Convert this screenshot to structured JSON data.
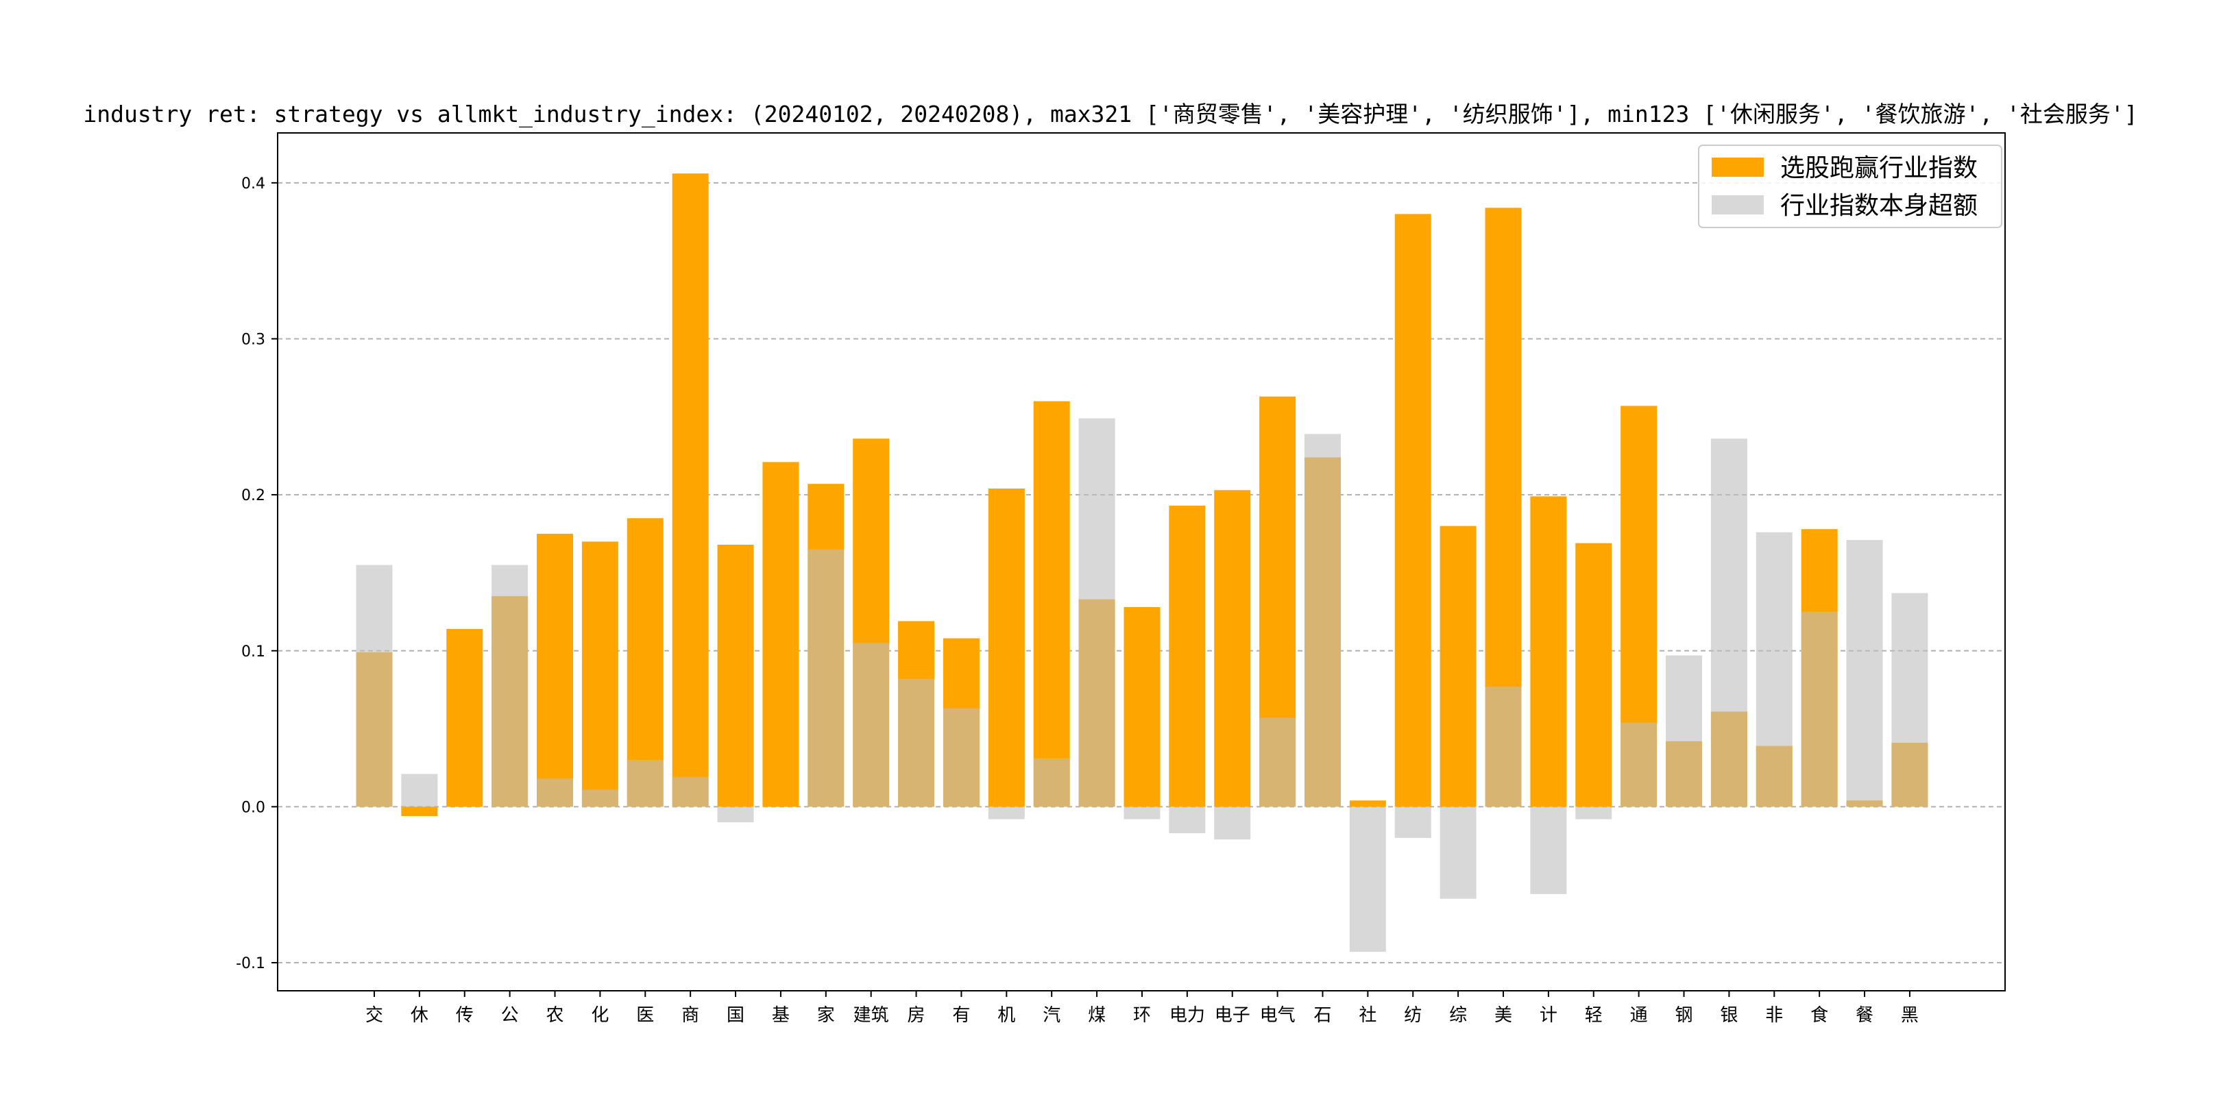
{
  "chart_data": {
    "type": "bar",
    "title": "industry ret: strategy vs allmkt_industry_index: (20240102, 20240208), max321 ['商贸零售', '美容护理', '纺织服饰'], min123 ['休闲服务', '餐饮旅游', '社会服务']",
    "xlabel": "",
    "ylabel": "",
    "ylim": [
      -0.118,
      0.432
    ],
    "yticks": [
      -0.1,
      0.0,
      0.1,
      0.2,
      0.3,
      0.4
    ],
    "ytick_labels": [
      "-0.1",
      "0.0",
      "0.1",
      "0.2",
      "0.3",
      "0.4"
    ],
    "grid": "y-dashed",
    "legend_position": "top-right",
    "categories": [
      "交",
      "休",
      "传",
      "公",
      "农",
      "化",
      "医",
      "商",
      "国",
      "基",
      "家",
      "建筑",
      "房",
      "有",
      "机",
      "汽",
      "煤",
      "环",
      "电力",
      "电子",
      "电气",
      "石",
      "社",
      "纺",
      "综",
      "美",
      "计",
      "轻",
      "通",
      "钢",
      "银",
      "非",
      "食",
      "餐",
      "黑"
    ],
    "series": [
      {
        "name": "选股跑赢行业指数",
        "color": "#FFA500",
        "values": [
          0.099,
          -0.006,
          0.114,
          0.135,
          0.175,
          0.17,
          0.185,
          0.406,
          0.168,
          0.221,
          0.207,
          0.236,
          0.119,
          0.108,
          0.204,
          0.26,
          0.133,
          0.128,
          0.193,
          0.203,
          0.263,
          0.224,
          0.004,
          0.38,
          0.18,
          0.384,
          0.199,
          0.169,
          0.257,
          0.042,
          0.061,
          0.039,
          0.178,
          0.004,
          0.041
        ]
      },
      {
        "name": "行业指数本身超额",
        "color": "#BEBEBE",
        "values": [
          0.155,
          0.021,
          0.0,
          0.155,
          0.018,
          0.011,
          0.03,
          0.019,
          -0.01,
          0.0,
          0.165,
          0.105,
          0.082,
          0.063,
          -0.008,
          0.031,
          0.249,
          -0.008,
          -0.017,
          -0.021,
          0.057,
          0.239,
          -0.093,
          -0.02,
          -0.059,
          0.077,
          -0.056,
          -0.008,
          0.054,
          0.097,
          0.236,
          0.176,
          0.125,
          0.171,
          0.137
        ]
      }
    ]
  }
}
